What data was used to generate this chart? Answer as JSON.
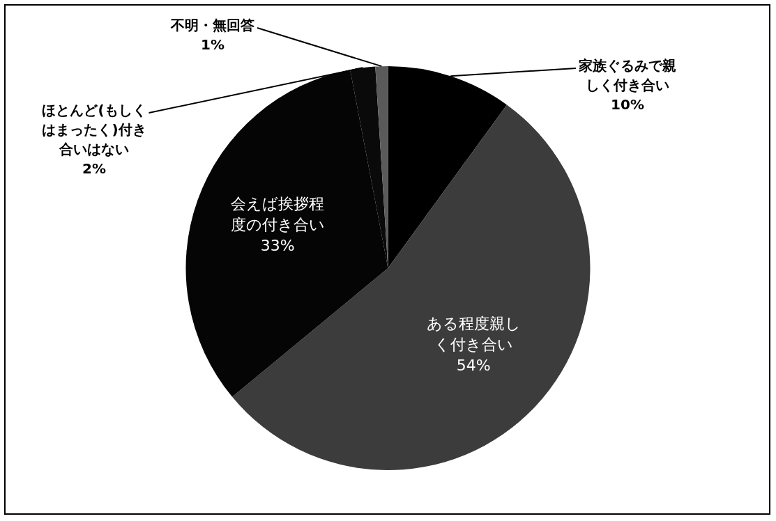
{
  "chart_data": {
    "type": "pie",
    "categories": [
      "家族ぐるみで親しく付き合い",
      "ある程度親しく付き合い",
      "会えば挨拶程度の付き合い",
      "ほとんど(もしくはまったく)付き合いはない",
      "不明・無回答"
    ],
    "values": [
      10,
      54,
      33,
      2,
      1
    ],
    "colors": [
      "#000000",
      "#3c3c3c",
      "#050505",
      "#0a0a0a",
      "#5a5a5a"
    ],
    "value_labels": [
      "10%",
      "54%",
      "33%",
      "2%",
      "1%"
    ],
    "legend": false
  }
}
